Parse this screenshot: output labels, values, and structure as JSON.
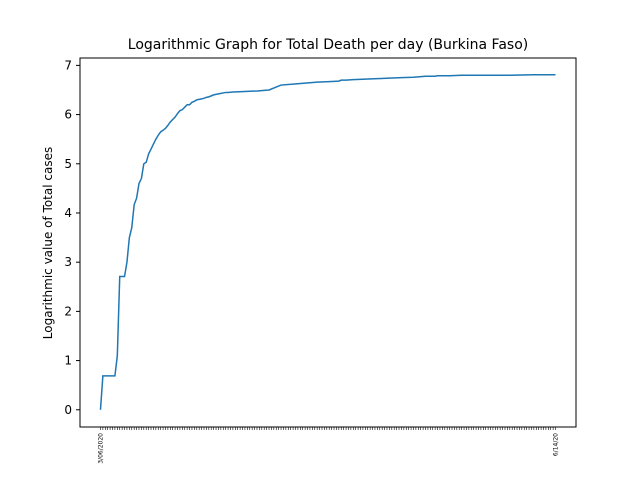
{
  "chart_data": {
    "type": "line",
    "title": "Logarithmic Graph for Total Death per day (Burkina Faso)",
    "xlabel": "",
    "ylabel": "Logarithmic value of Total cases",
    "ylim": [
      -0.35,
      7.15
    ],
    "yticks": [
      0,
      1,
      2,
      3,
      4,
      5,
      6,
      7
    ],
    "grid": false,
    "legend": "none",
    "line_color": "#1f77b4",
    "first_xtick_label": "3/06/2020",
    "last_xtick_label": "6/14/20",
    "series": [
      {
        "x_index": [
          0,
          1,
          2,
          3,
          4,
          5,
          6,
          7,
          8,
          9,
          10,
          11,
          12,
          13,
          14,
          15,
          16,
          17,
          18,
          19,
          20,
          21,
          22,
          23,
          24,
          25,
          26,
          27,
          28,
          29,
          30,
          31,
          32,
          33,
          34,
          35,
          36,
          37,
          38,
          39,
          40,
          41,
          42,
          43,
          44,
          45,
          46,
          47,
          48,
          49,
          50,
          51,
          52,
          53,
          55,
          60,
          65,
          70,
          75,
          80,
          85,
          90,
          95,
          99,
          100,
          102,
          105,
          110,
          115,
          120,
          125,
          130,
          135,
          139,
          140,
          145,
          150,
          155,
          159,
          160,
          170,
          180,
          189
        ],
        "values": [
          0,
          0.69,
          0.69,
          0.69,
          0.69,
          0.69,
          0.69,
          1.1,
          2.71,
          2.71,
          2.71,
          3.0,
          3.5,
          3.7,
          4.17,
          4.3,
          4.6,
          4.7,
          5.0,
          5.03,
          5.2,
          5.3,
          5.4,
          5.5,
          5.58,
          5.65,
          5.68,
          5.72,
          5.78,
          5.85,
          5.9,
          5.95,
          6.02,
          6.08,
          6.1,
          6.15,
          6.2,
          6.2,
          6.25,
          6.27,
          6.3,
          6.31,
          6.32,
          6.33,
          6.35,
          6.36,
          6.38,
          6.4,
          6.41,
          6.42,
          6.43,
          6.44,
          6.45,
          6.45,
          6.46,
          6.47,
          6.48,
          6.5,
          6.6,
          6.62,
          6.64,
          6.66,
          6.67,
          6.68,
          6.7,
          6.7,
          6.71,
          6.72,
          6.73,
          6.74,
          6.75,
          6.76,
          6.78,
          6.78,
          6.79,
          6.79,
          6.8,
          6.8,
          6.8,
          6.8,
          6.8,
          6.81,
          6.81
        ]
      }
    ]
  }
}
